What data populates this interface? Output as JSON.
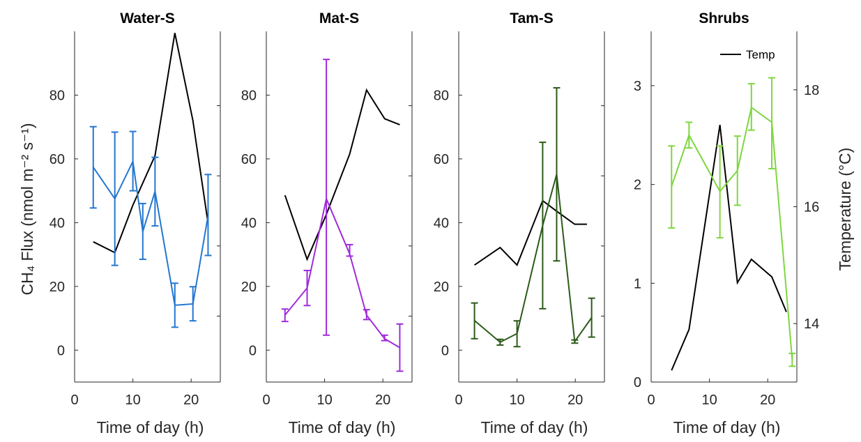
{
  "chart_data": [
    {
      "type": "line",
      "title": "Water-S",
      "xlabel": "Time of day (h)",
      "ylabel": "CH₄ Flux (nmol m⁻² s⁻¹)",
      "xlim": [
        0,
        25
      ],
      "xticks": [
        "0",
        "10",
        "20"
      ],
      "ylim": [
        -10,
        100
      ],
      "yticks": [
        "0",
        "20",
        "40",
        "60",
        "80"
      ],
      "color": "#2376D0",
      "series": [
        {
          "x": [
            3.2,
            6.9,
            10.0,
            11.7,
            13.8,
            17.2,
            20.3,
            22.9
          ],
          "y": [
            57.4,
            47.5,
            59.2,
            37.2,
            49.8,
            14.1,
            14.5,
            42.2
          ],
          "err_low": [
            44.6,
            26.6,
            50.0,
            28.5,
            39.0,
            7.2,
            9.2,
            29.7
          ],
          "err_high": [
            70.1,
            68.4,
            68.6,
            46.0,
            60.5,
            21.0,
            19.9,
            55.1
          ]
        }
      ],
      "temp": {
        "x": [
          3.2,
          6.9,
          10.0,
          13.8,
          17.2,
          20.3,
          22.9
        ],
        "y": [
          34.0,
          30.6,
          45.5,
          61.0,
          99.5,
          72.0,
          39.8
        ]
      }
    },
    {
      "type": "line",
      "title": "Mat-S",
      "xlabel": "Time of day (h)",
      "xlim": [
        0,
        25
      ],
      "xticks": [
        "0",
        "10",
        "20"
      ],
      "ylim": [
        -10,
        100
      ],
      "yticks": [
        "0",
        "20",
        "40",
        "60",
        "80"
      ],
      "color": "#9F2BDB",
      "series": [
        {
          "x": [
            3.2,
            7.0,
            10.3,
            14.3,
            17.2,
            20.3,
            22.9
          ],
          "y": [
            11.0,
            19.5,
            47.5,
            30.2,
            11.0,
            3.6,
            0.8
          ],
          "err_low": [
            9.0,
            14.0,
            4.7,
            29.5,
            9.6,
            3.0,
            -6.6
          ],
          "err_high": [
            12.9,
            25.0,
            91.2,
            33.1,
            12.7,
            4.7,
            8.2
          ]
        }
      ],
      "temp": {
        "x": [
          3.2,
          7.0,
          10.3,
          14.3,
          17.2,
          20.3,
          22.9
        ],
        "y": [
          48.6,
          28.5,
          42.6,
          61.5,
          81.6,
          72.6,
          70.7
        ]
      }
    },
    {
      "type": "line",
      "title": "Tam-S",
      "xlabel": "Time of day (h)",
      "xlim": [
        0,
        25
      ],
      "xticks": [
        "0",
        "10",
        "20"
      ],
      "ylim": [
        -10,
        100
      ],
      "yticks": [
        "0",
        "20",
        "40",
        "60",
        "80"
      ],
      "color": "#2B5A19",
      "series": [
        {
          "x": [
            2.7,
            7.1,
            10.0,
            14.4,
            16.8,
            19.9,
            22.8
          ],
          "y": [
            9.3,
            2.5,
            5.2,
            39.1,
            55.2,
            2.7,
            10.2
          ],
          "err_low": [
            3.6,
            1.6,
            1.1,
            13.0,
            28.0,
            2.2,
            4.1
          ],
          "err_high": [
            14.8,
            3.4,
            9.2,
            65.2,
            82.3,
            3.2,
            16.3
          ]
        }
      ],
      "temp": {
        "x": [
          2.7,
          7.1,
          10.0,
          14.4,
          16.8,
          19.9,
          22.0
        ],
        "y": [
          26.7,
          32.2,
          26.7,
          46.9,
          43.6,
          39.5,
          39.5
        ]
      }
    },
    {
      "type": "line",
      "title": "Shrubs",
      "xlabel": "Time of day (h)",
      "ylabel_right": "Temperature (°C)",
      "xlim": [
        0,
        25
      ],
      "xticks": [
        "0",
        "10",
        "20"
      ],
      "ylim": [
        0,
        3.55
      ],
      "yticks": [
        "0",
        "1",
        "2",
        "3"
      ],
      "y2lim": [
        13.0,
        19.0
      ],
      "y2ticks": [
        "14",
        "16",
        "18"
      ],
      "color": "#7ED63F",
      "legend": {
        "label": "Temp",
        "position": "top-right"
      },
      "series": [
        {
          "x": [
            3.5,
            6.5,
            11.8,
            14.8,
            17.2,
            20.7,
            24.2
          ],
          "y": [
            1.98,
            2.5,
            1.93,
            2.14,
            2.78,
            2.63,
            0.23
          ],
          "err_low": [
            1.56,
            2.37,
            1.46,
            1.79,
            2.55,
            2.16,
            0.16
          ],
          "err_high": [
            2.39,
            2.63,
            2.39,
            2.49,
            3.02,
            3.08,
            0.29
          ]
        }
      ],
      "temp": {
        "x": [
          3.5,
          6.5,
          11.8,
          14.8,
          17.2,
          20.7,
          23.2
        ],
        "y": [
          13.2,
          13.9,
          17.4,
          14.7,
          15.1,
          14.8,
          14.2
        ]
      }
    }
  ]
}
